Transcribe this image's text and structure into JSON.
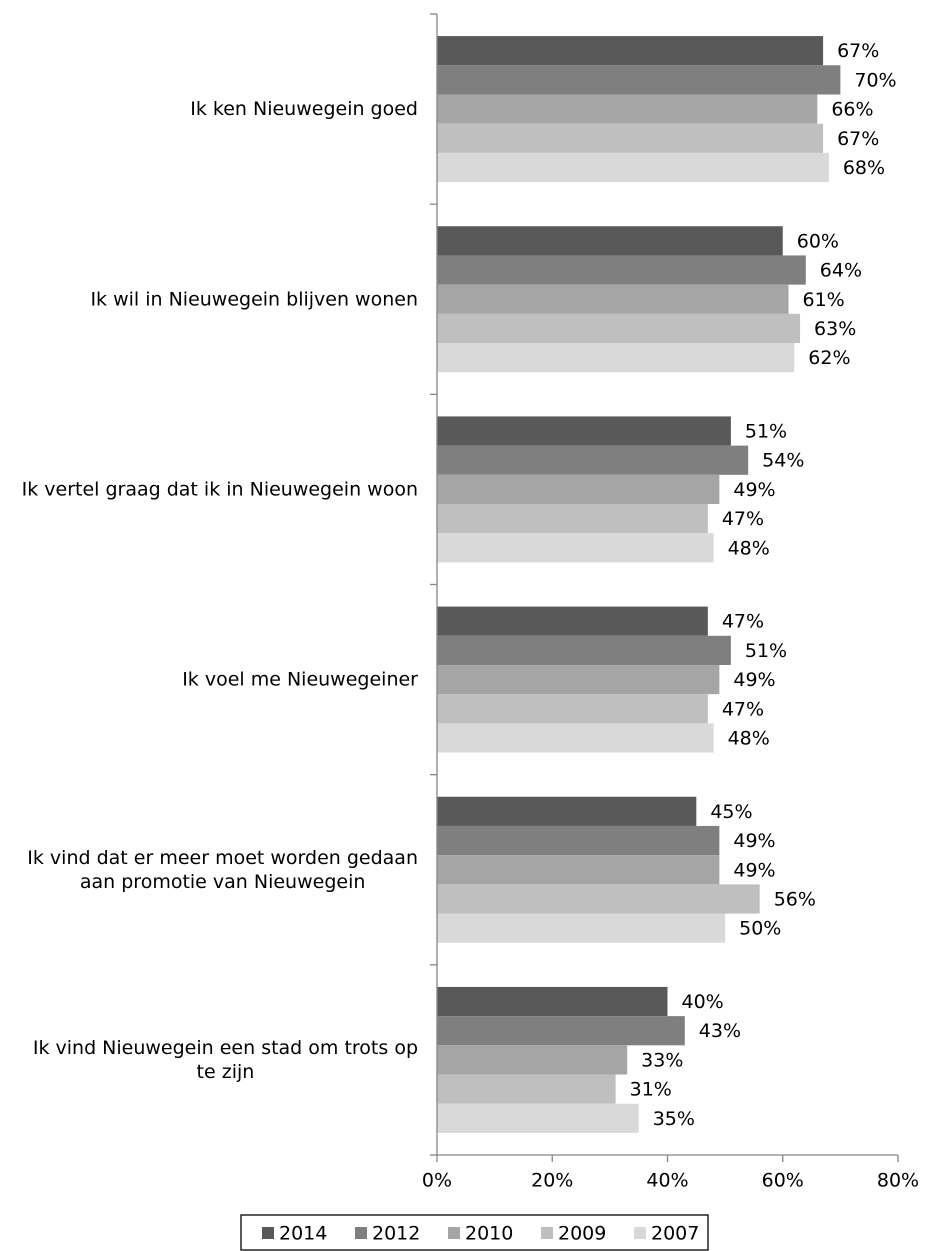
{
  "chart_data": {
    "type": "hbar",
    "categories": [
      "Ik ken Nieuwegein goed",
      "Ik wil in Nieuwegein blijven wonen",
      "Ik vertel graag dat ik in Nieuwegein woon",
      "Ik voel me Nieuwegeiner",
      "Ik vind dat er meer moet worden gedaan aan promotie van Nieuwegein",
      "Ik vind Nieuwegein een stad om trots op te zijn"
    ],
    "series": [
      {
        "name": "2014",
        "color": "#595959",
        "values": [
          67,
          60,
          51,
          47,
          45,
          40
        ],
        "value_labels": [
          "67%",
          "60%",
          "51%",
          "47%",
          "45%",
          "40%"
        ]
      },
      {
        "name": "2012",
        "color": "#7f7f7f",
        "values": [
          70,
          64,
          54,
          51,
          49,
          43
        ],
        "value_labels": [
          "70%",
          "64%",
          "54%",
          "51%",
          "49%",
          "43%"
        ]
      },
      {
        "name": "2010",
        "color": "#a5a5a5",
        "values": [
          66,
          61,
          49,
          49,
          49,
          33
        ],
        "value_labels": [
          "66%",
          "61%",
          "49%",
          "49%",
          "49%",
          "33%"
        ]
      },
      {
        "name": "2009",
        "color": "#bfbfbf",
        "values": [
          67,
          63,
          47,
          47,
          56,
          31
        ],
        "value_labels": [
          "67%",
          "63%",
          "47%",
          "47%",
          "56%",
          "31%"
        ]
      },
      {
        "name": "2007",
        "color": "#d9d9d9",
        "values": [
          68,
          62,
          48,
          48,
          50,
          35
        ],
        "value_labels": [
          "68%",
          "62%",
          "48%",
          "48%",
          "50%",
          "35%"
        ]
      }
    ],
    "xlim": [
      0,
      80
    ],
    "xticks": [
      {
        "value": 0,
        "label": "0%"
      },
      {
        "value": 20,
        "label": "20%"
      },
      {
        "value": 40,
        "label": "40%"
      },
      {
        "value": 60,
        "label": "60%"
      },
      {
        "value": 80,
        "label": "80%"
      }
    ],
    "grid": false,
    "legend": "bottom"
  }
}
